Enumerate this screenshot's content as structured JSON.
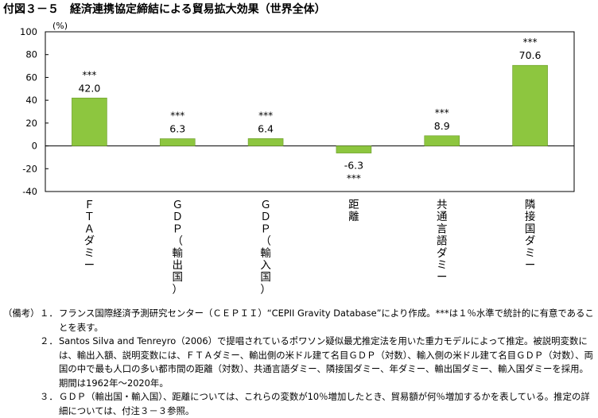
{
  "title": "付図３－５　経済連携協定締結による貿易拡大効果（世界全体）",
  "chart_data": {
    "type": "bar",
    "unit_label": "(%)",
    "categories": [
      "ＦＴＡダミー",
      "ＧＤＰ（輸出国）",
      "ＧＤＰ（輸入国）",
      "距離",
      "共通言語ダミー",
      "隣接国ダミー"
    ],
    "series": [
      {
        "values": [
          42.0,
          6.3,
          6.4,
          -6.3,
          8.9,
          70.6
        ]
      }
    ],
    "value_labels": [
      "42.0",
      "6.3",
      "6.4",
      "-6.3",
      "8.9",
      "70.6"
    ],
    "significance": [
      "***",
      "***",
      "***",
      "***",
      "***",
      "***"
    ],
    "ylim": [
      -40,
      100
    ],
    "yticks": [
      -40,
      -20,
      0,
      20,
      40,
      60,
      80,
      100
    ],
    "grid": false,
    "bar_color": "#8dc63f"
  },
  "notes": {
    "label": "（備考）",
    "items": [
      {
        "num": "１．",
        "text": "フランス国際経済予測研究センター（ＣＥＰＩＩ）“CEPII Gravity Database”により作成。***は１％水準で統計的に有意であることを表す。"
      },
      {
        "num": "２．",
        "text": "Santos Silva and Tenreyro（2006）で提唱されているポワソン疑似最尤推定法を用いた重力モデルによって推定。被説明変数には、輸出入額、説明変数には、ＦＴＡダミー、輸出側の米ドル建て名目ＧＤＰ（対数）、輸入側の米ドル建て名目ＧＤＰ（対数）、両国の中で最も人口の多い都市間の距離（対数）、共通言語ダミー、隣接国ダミー、年ダミー、輸出国ダミー、輸入国ダミーを採用。期間は1962年～2020年。"
      },
      {
        "num": "３．",
        "text": "ＧＤＰ（輸出国・輸入国）、距離については、これらの変数が10％増加したとき、貿易額が何％増加するかを表している。推定の詳細については、付注３－３参照。"
      }
    ]
  }
}
